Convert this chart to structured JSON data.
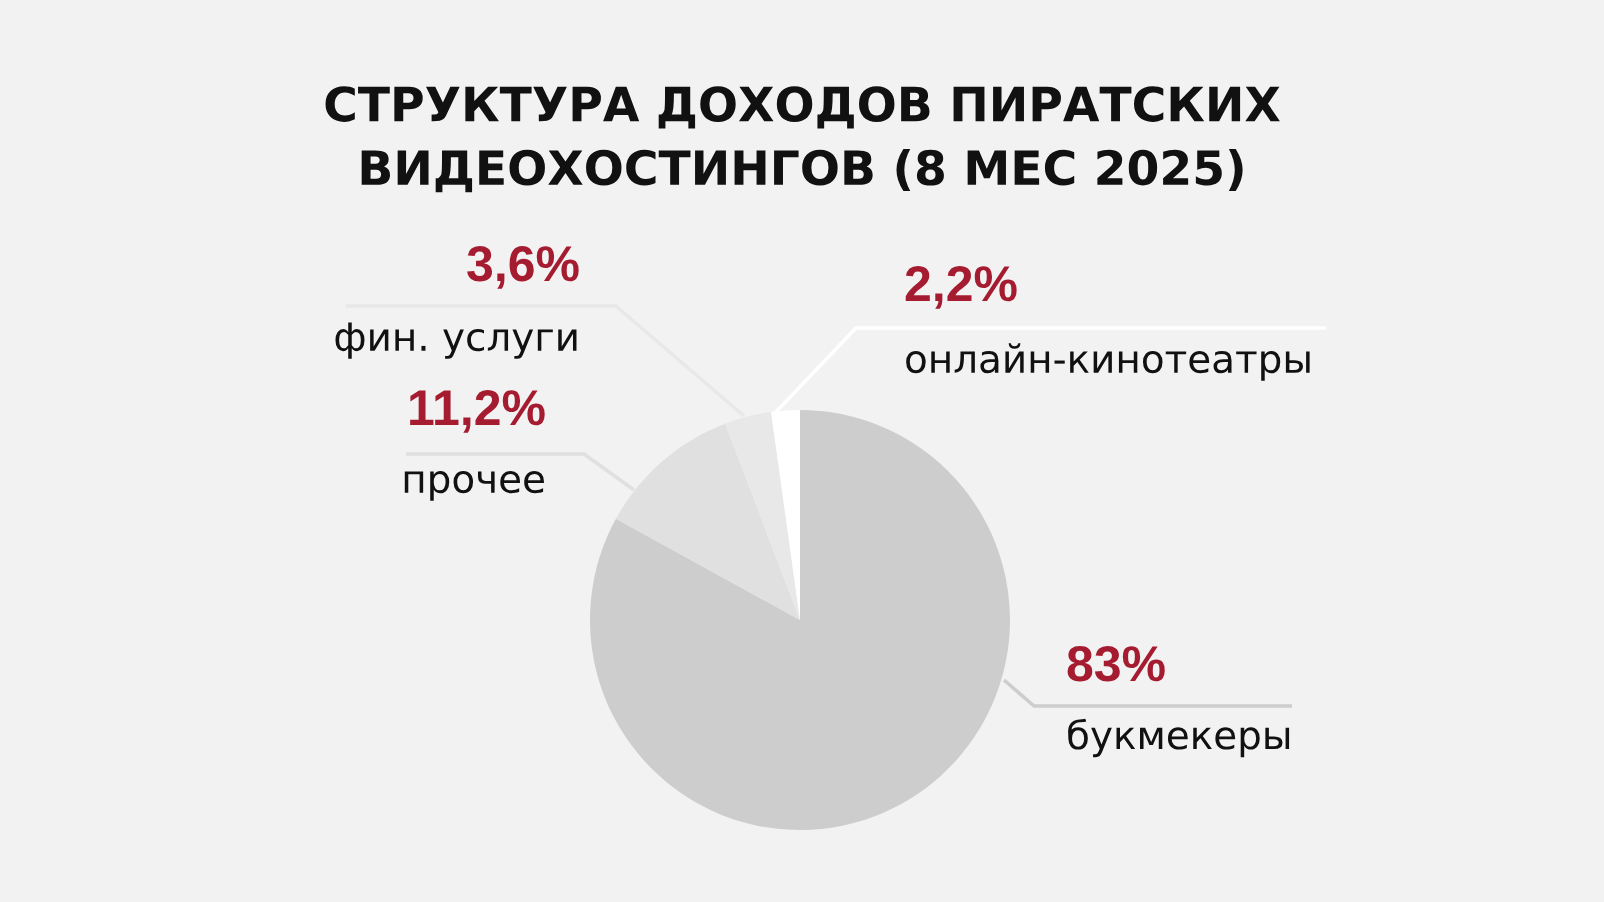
{
  "chart_data": {
    "type": "pie",
    "title": "СТРУКТУРА ДОХОДОВ ПИРАТСКИХ\nВИДЕОХОСТИНГОВ (8 МЕС 2025)",
    "categories": [
      "букмекеры",
      "прочее",
      "фин. услуги",
      "онлайн-кинотеатры"
    ],
    "values": [
      83,
      11.2,
      3.6,
      2.2
    ],
    "value_labels": [
      "83%",
      "11,2%",
      "3,6%",
      "2,2%"
    ],
    "colors": [
      "#cdcdcd",
      "#e0e0e0",
      "#e8e8e8",
      "#ffffff"
    ]
  }
}
